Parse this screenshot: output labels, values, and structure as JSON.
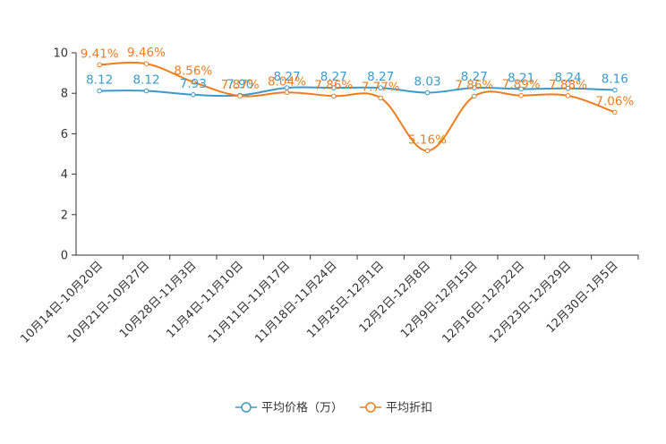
{
  "chart_data": {
    "type": "line",
    "title": "",
    "xlabel": "",
    "ylabel": "",
    "ylim": [
      0,
      10
    ],
    "yticks": [
      0,
      2,
      4,
      6,
      8,
      10
    ],
    "ytick_labels": [
      "0",
      "2",
      "4",
      "6",
      "8",
      "10"
    ],
    "grid": false,
    "legend_position": "bottom-center",
    "categories": [
      "10月14日-10月20日",
      "10月21日-10月27日",
      "10月28日-11月3日",
      "11月4日-11月10日",
      "11月11日-11月17日",
      "11月18日-11月24日",
      "11月25日-12月1日",
      "12月2日-12月8日",
      "12月9日-12月15日",
      "12月16日-12月22日",
      "12月23日-12月29日",
      "12月30日-1月5日"
    ],
    "series": [
      {
        "name": "平均价格（万）",
        "color": "#3a9bcb",
        "values": [
          8.12,
          8.12,
          7.93,
          7.9,
          8.27,
          8.27,
          8.27,
          8.03,
          8.27,
          8.21,
          8.24,
          8.16
        ],
        "labels": [
          "8.12",
          "8.12",
          "7.93",
          "7.90",
          "8.27",
          "8.27",
          "8.27",
          "8.03",
          "8.27",
          "8.21",
          "8.24",
          "8.16"
        ]
      },
      {
        "name": "平均折扣",
        "color": "#f07c1c",
        "values": [
          9.41,
          9.46,
          8.56,
          7.87,
          8.04,
          7.86,
          7.77,
          5.16,
          7.86,
          7.89,
          7.88,
          7.06
        ],
        "labels": [
          "9.41%",
          "9.46%",
          "8.56%",
          "7.87%",
          "8.04%",
          "7.86%",
          "7.77%",
          "5.16%",
          "7.86%",
          "7.89%",
          "7.88%",
          "7.06%"
        ]
      }
    ]
  }
}
